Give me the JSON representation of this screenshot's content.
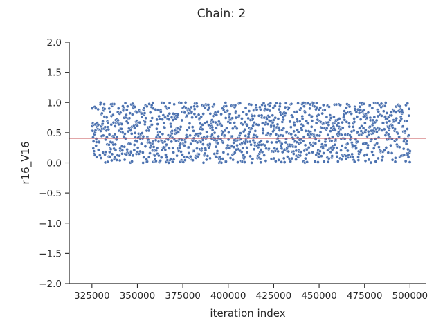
{
  "chart_data": {
    "type": "scatter",
    "title": "Chain: 2",
    "xlabel": "iteration index",
    "ylabel": "r16_V16",
    "xlim": [
      312500,
      509000
    ],
    "ylim": [
      -2.0,
      2.0
    ],
    "x_ticks": [
      325000,
      350000,
      375000,
      400000,
      425000,
      450000,
      475000,
      500000
    ],
    "x_tick_labels": [
      "325000",
      "350000",
      "375000",
      "400000",
      "425000",
      "450000",
      "475000",
      "500000"
    ],
    "y_ticks": [
      2.0,
      1.5,
      1.0,
      0.5,
      0.0,
      -0.5,
      -1.0,
      -1.5,
      -2.0
    ],
    "y_tick_labels": [
      "2.0",
      "1.5",
      "1.0",
      "0.5",
      "0.0",
      "−0.5",
      "−1.0",
      "−1.5",
      "−2.0"
    ],
    "grid": false,
    "reference_line": {
      "y": 0.41,
      "color": "#c44e52"
    },
    "series": [
      {
        "color": "#4c72b0",
        "x_start": 325000,
        "x_end": 500000,
        "x_step": 125,
        "y_min": 0.0,
        "y_max": 1.0,
        "n_points": 1401
      }
    ]
  }
}
